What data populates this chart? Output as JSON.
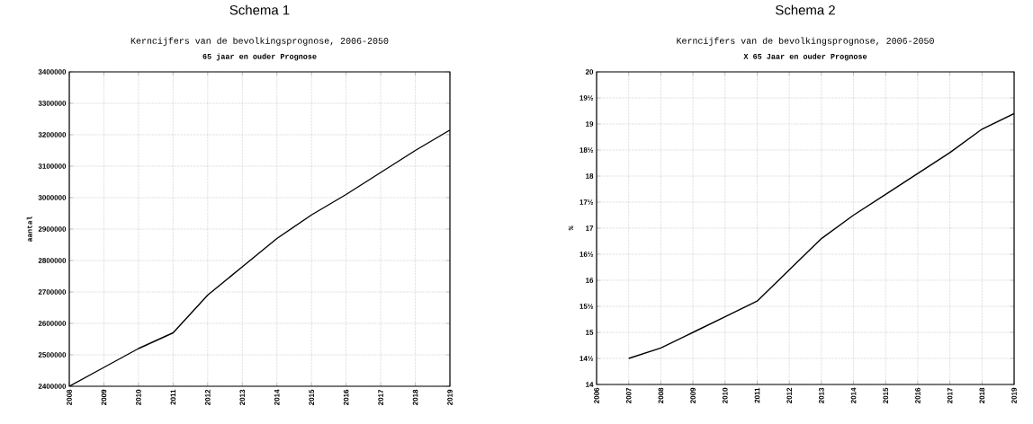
{
  "chart_data": [
    {
      "type": "line",
      "title": "Schema 1",
      "subtitle": "Kerncijfers van de bevolkingsprognose, 2006-2050",
      "annotations": [
        "65 jaar en ouder Prognose"
      ],
      "ylabel": "aantal",
      "x": [
        2008,
        2009,
        2010,
        2011,
        2012,
        2013,
        2014,
        2015,
        2016,
        2017,
        2018,
        2019
      ],
      "series": [
        {
          "color": "#000000",
          "values": [
            2400000,
            2460000,
            2520000,
            2570000,
            2690000,
            2780000,
            2870000,
            2945000,
            3010000,
            3080000,
            3150000,
            3215000
          ]
        }
      ],
      "xlim": [
        2008,
        2019
      ],
      "xticks": [
        2008,
        2009,
        2010,
        2011,
        2012,
        2013,
        2014,
        2015,
        2016,
        2017,
        2018,
        2019
      ],
      "ylim": [
        2400000,
        3400000
      ],
      "yticks": [
        2400000,
        2500000,
        2600000,
        2700000,
        2800000,
        2900000,
        3000000,
        3100000,
        3200000,
        3300000,
        3400000
      ],
      "grid": true,
      "marker": "none"
    },
    {
      "type": "line",
      "title": "Schema 2",
      "subtitle": "Kerncijfers van de bevolkingsprognose, 2006-2050",
      "annotations": [
        "X 65 Jaar en ouder Prognose"
      ],
      "ylabel": "%",
      "x": [
        2007,
        2008,
        2009,
        2010,
        2011,
        2012,
        2013,
        2014,
        2015,
        2016,
        2017,
        2018,
        2019
      ],
      "series": [
        {
          "color": "#000000",
          "values": [
            14.5,
            14.7,
            15.0,
            15.3,
            15.6,
            16.2,
            16.8,
            17.25,
            17.65,
            18.05,
            18.45,
            18.9,
            19.2
          ]
        }
      ],
      "xlim": [
        2006,
        2019
      ],
      "xticks": [
        2006,
        2007,
        2008,
        2009,
        2010,
        2011,
        2012,
        2013,
        2014,
        2015,
        2016,
        2017,
        2018,
        2019
      ],
      "ylim": [
        14,
        20
      ],
      "yticks": [
        14,
        {
          "value": 14.5,
          "label": "14½"
        },
        15,
        {
          "value": 15.5,
          "label": "15½"
        },
        16,
        {
          "value": 16.5,
          "label": "16½"
        },
        17,
        {
          "value": 17.5,
          "label": "17½"
        },
        18,
        {
          "value": 18.5,
          "label": "18½"
        },
        19,
        {
          "value": 19.5,
          "label": "19½"
        },
        20
      ],
      "grid": true,
      "marker": "none"
    }
  ]
}
